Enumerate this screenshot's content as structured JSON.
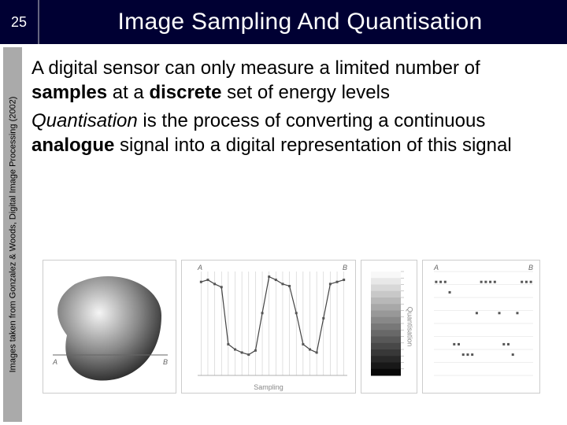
{
  "header": {
    "page_number": "25",
    "title": "Image Sampling And Quantisation",
    "bg_color": "#000033",
    "text_color": "#ffffff",
    "title_fontsize": 30
  },
  "credit": {
    "text": "Images taken from Gonzalez & Woods, Digital Image Processing (2002)",
    "fontsize": 11
  },
  "body": {
    "para1_pre": "A digital sensor can only measure a limited number of ",
    "para1_b1": "samples",
    "para1_mid": " at a ",
    "para1_b2": "discrete",
    "para1_post": " set of energy levels",
    "para2_i": "Quantisation",
    "para2_mid": " is the process of converting a continuous ",
    "para2_b": "analogue",
    "para2_post": " signal into a digital representation of this signal",
    "fontsize": 24,
    "text_color": "#000000"
  },
  "figures": {
    "scanline": {
      "A": "A",
      "B": "B",
      "line_color": "#666666",
      "blob_stops": [
        "#f5f5f5",
        "#888888",
        "#222222"
      ]
    },
    "sampling": {
      "caption": "Sampling",
      "A": "A",
      "B": "B",
      "n_samples": 22,
      "tick_color": "#cccccc",
      "line_color": "#444444",
      "dot_color": "#555555",
      "values": [
        90,
        92,
        88,
        85,
        30,
        25,
        22,
        20,
        24,
        60,
        95,
        92,
        88,
        86,
        60,
        30,
        25,
        22,
        55,
        88,
        90,
        92
      ]
    },
    "grayscale": {
      "caption": "Quantisation",
      "levels": 16,
      "light": "#f8f8f8",
      "dark": "#080808"
    },
    "quantised": {
      "A": "A",
      "B": "B",
      "n_samples": 22,
      "dot_color": "#555555",
      "levels_line_color": "#dddddd",
      "values": [
        90,
        90,
        90,
        80,
        30,
        30,
        20,
        20,
        20,
        60,
        90,
        90,
        90,
        90,
        60,
        30,
        30,
        20,
        60,
        90,
        90,
        90
      ]
    }
  }
}
